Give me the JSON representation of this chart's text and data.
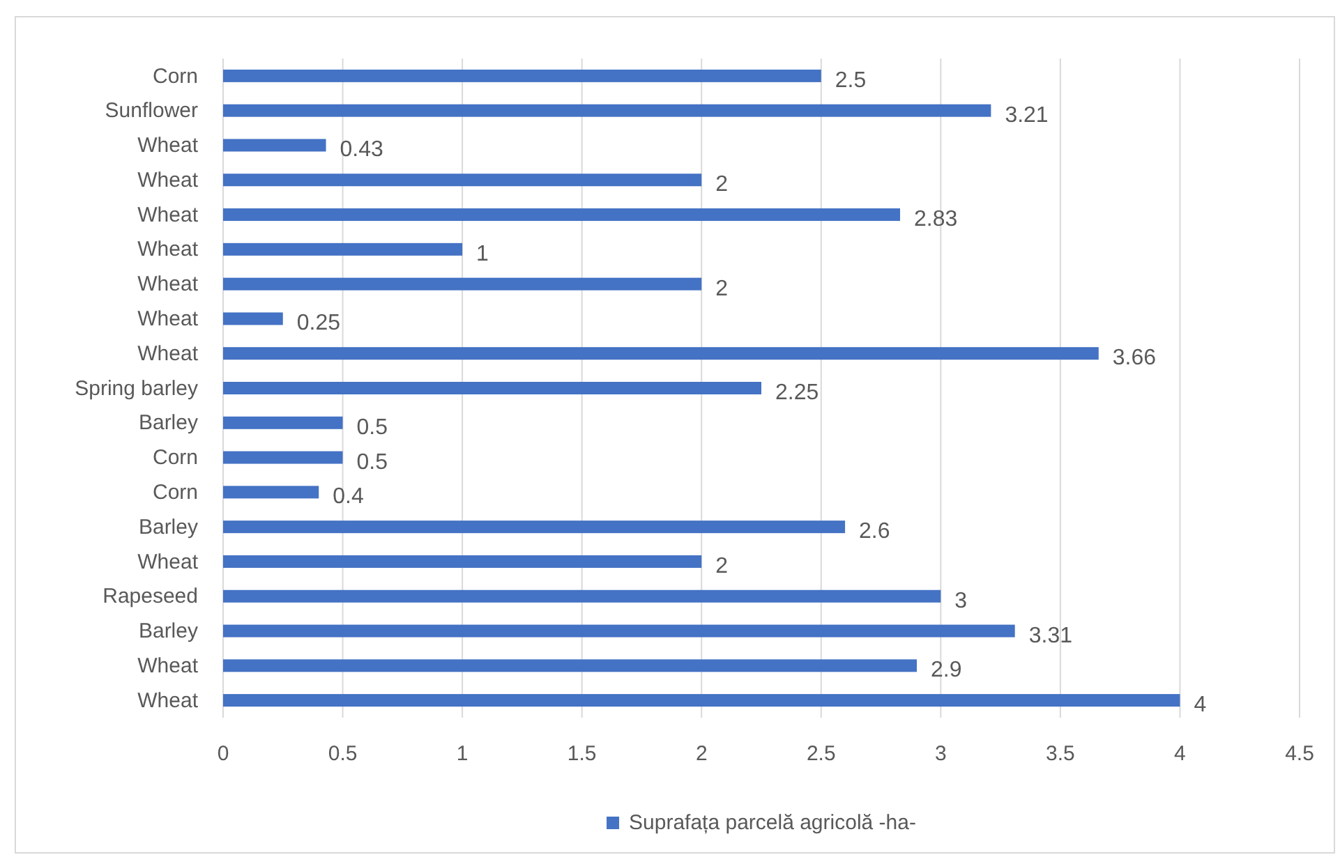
{
  "chart_data": {
    "type": "bar",
    "orientation": "horizontal",
    "categories": [
      "Corn",
      "Sunflower",
      "Wheat",
      "Wheat",
      "Wheat",
      "Wheat",
      "Wheat",
      "Wheat",
      "Wheat",
      "Spring barley",
      "Barley",
      "Corn",
      "Corn",
      "Barley",
      "Wheat",
      "Rapeseed",
      "Barley",
      "Wheat",
      "Wheat"
    ],
    "series": [
      {
        "name": "Suprafața parcelă agricolă -ha-",
        "color": "#4472c4",
        "values": [
          2.5,
          3.21,
          0.43,
          2,
          2.83,
          1,
          2,
          0.25,
          3.66,
          2.25,
          0.5,
          0.5,
          0.4,
          2.6,
          2,
          3,
          3.31,
          2.9,
          4
        ]
      }
    ],
    "xlim": [
      0,
      4.5
    ],
    "xticks": [
      0,
      0.5,
      1,
      1.5,
      2,
      2.5,
      3,
      3.5,
      4,
      4.5
    ],
    "grid": "x",
    "legend": "bottom",
    "data_labels": true
  }
}
